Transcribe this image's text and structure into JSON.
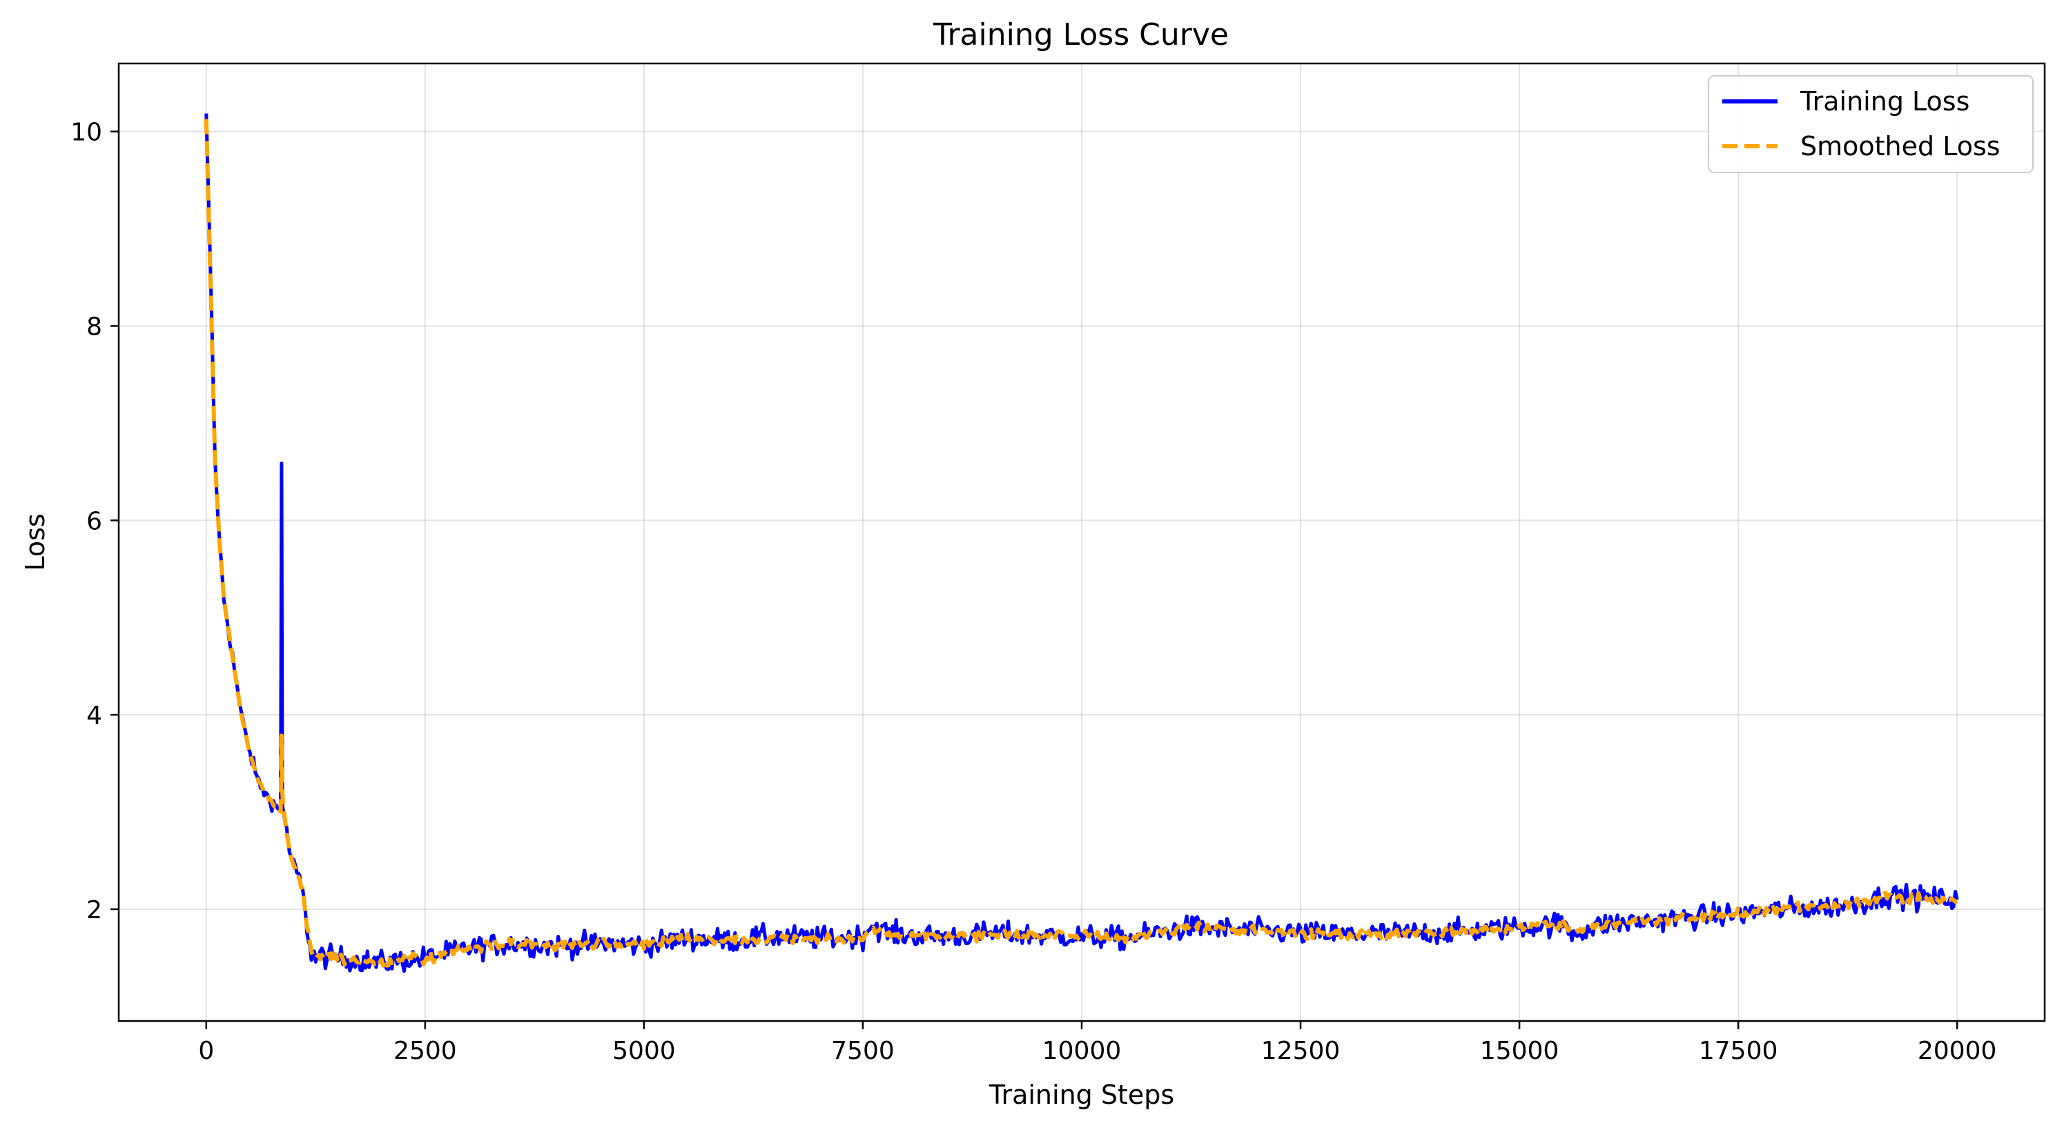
{
  "chart_data": {
    "type": "line",
    "title": "Training Loss Curve",
    "xlabel": "Training Steps",
    "ylabel": "Loss",
    "xlim": [
      -1000,
      21000
    ],
    "ylim": [
      0.85,
      10.7
    ],
    "xticks": [
      0,
      2500,
      5000,
      7500,
      10000,
      12500,
      15000,
      17500,
      20000
    ],
    "yticks": [
      2,
      4,
      6,
      8,
      10
    ],
    "grid": true,
    "legend_position": "top-right",
    "series": [
      {
        "name": "Training Loss",
        "color": "#0000ff",
        "style": "solid",
        "noise": 0.12,
        "x": [
          0,
          50,
          100,
          150,
          200,
          300,
          400,
          500,
          600,
          700,
          750,
          800,
          850,
          860,
          870,
          880,
          900,
          950,
          1000,
          1050,
          1100,
          1150,
          1200,
          1250,
          1300,
          1500,
          2000,
          2500,
          3000,
          3500,
          4000,
          4500,
          5000,
          5500,
          6000,
          6500,
          7000,
          7500,
          7600,
          7800,
          8000,
          8500,
          9000,
          9500,
          10000,
          10500,
          11000,
          11300,
          11500,
          12000,
          12500,
          13000,
          13500,
          14000,
          14500,
          15000,
          15500,
          15600,
          16000,
          16500,
          17000,
          17500,
          18000,
          18500,
          19000,
          19200,
          19500,
          20000
        ],
        "y": [
          10.15,
          8.5,
          6.6,
          5.8,
          5.2,
          4.6,
          4.0,
          3.6,
          3.3,
          3.15,
          3.1,
          3.05,
          3.0,
          6.6,
          3.1,
          3.0,
          2.9,
          2.6,
          2.45,
          2.35,
          2.2,
          1.8,
          1.55,
          1.5,
          1.52,
          1.5,
          1.45,
          1.5,
          1.6,
          1.65,
          1.62,
          1.65,
          1.63,
          1.7,
          1.68,
          1.72,
          1.7,
          1.72,
          1.85,
          1.75,
          1.73,
          1.72,
          1.75,
          1.73,
          1.72,
          1.7,
          1.78,
          1.82,
          1.8,
          1.78,
          1.75,
          1.74,
          1.75,
          1.76,
          1.78,
          1.82,
          1.85,
          1.75,
          1.85,
          1.88,
          1.92,
          1.95,
          2.0,
          2.02,
          2.08,
          2.15,
          2.12,
          2.1
        ]
      },
      {
        "name": "Smoothed Loss",
        "color": "#ffa500",
        "style": "dashed",
        "noise": 0.05,
        "x": [
          0,
          50,
          100,
          150,
          200,
          300,
          400,
          500,
          600,
          700,
          750,
          800,
          850,
          860,
          870,
          880,
          900,
          950,
          1000,
          1050,
          1100,
          1150,
          1200,
          1250,
          1300,
          1500,
          2000,
          2500,
          3000,
          3500,
          4000,
          4500,
          5000,
          5500,
          6000,
          6500,
          7000,
          7500,
          7600,
          7800,
          8000,
          8500,
          9000,
          9500,
          10000,
          10500,
          11000,
          11300,
          11500,
          12000,
          12500,
          13000,
          13500,
          14000,
          14500,
          15000,
          15500,
          15600,
          16000,
          16500,
          17000,
          17500,
          18000,
          18500,
          19000,
          19200,
          19500,
          20000
        ],
        "y": [
          10.1,
          8.4,
          6.6,
          5.8,
          5.2,
          4.6,
          4.0,
          3.6,
          3.3,
          3.15,
          3.1,
          3.05,
          3.0,
          3.8,
          3.2,
          3.05,
          2.9,
          2.6,
          2.45,
          2.35,
          2.2,
          1.8,
          1.55,
          1.5,
          1.52,
          1.5,
          1.45,
          1.5,
          1.6,
          1.65,
          1.62,
          1.65,
          1.63,
          1.7,
          1.68,
          1.72,
          1.7,
          1.72,
          1.8,
          1.75,
          1.73,
          1.72,
          1.75,
          1.73,
          1.72,
          1.7,
          1.78,
          1.82,
          1.8,
          1.78,
          1.75,
          1.74,
          1.75,
          1.76,
          1.78,
          1.82,
          1.85,
          1.77,
          1.85,
          1.88,
          1.92,
          1.95,
          2.0,
          2.02,
          2.08,
          2.13,
          2.11,
          2.08
        ]
      }
    ]
  }
}
